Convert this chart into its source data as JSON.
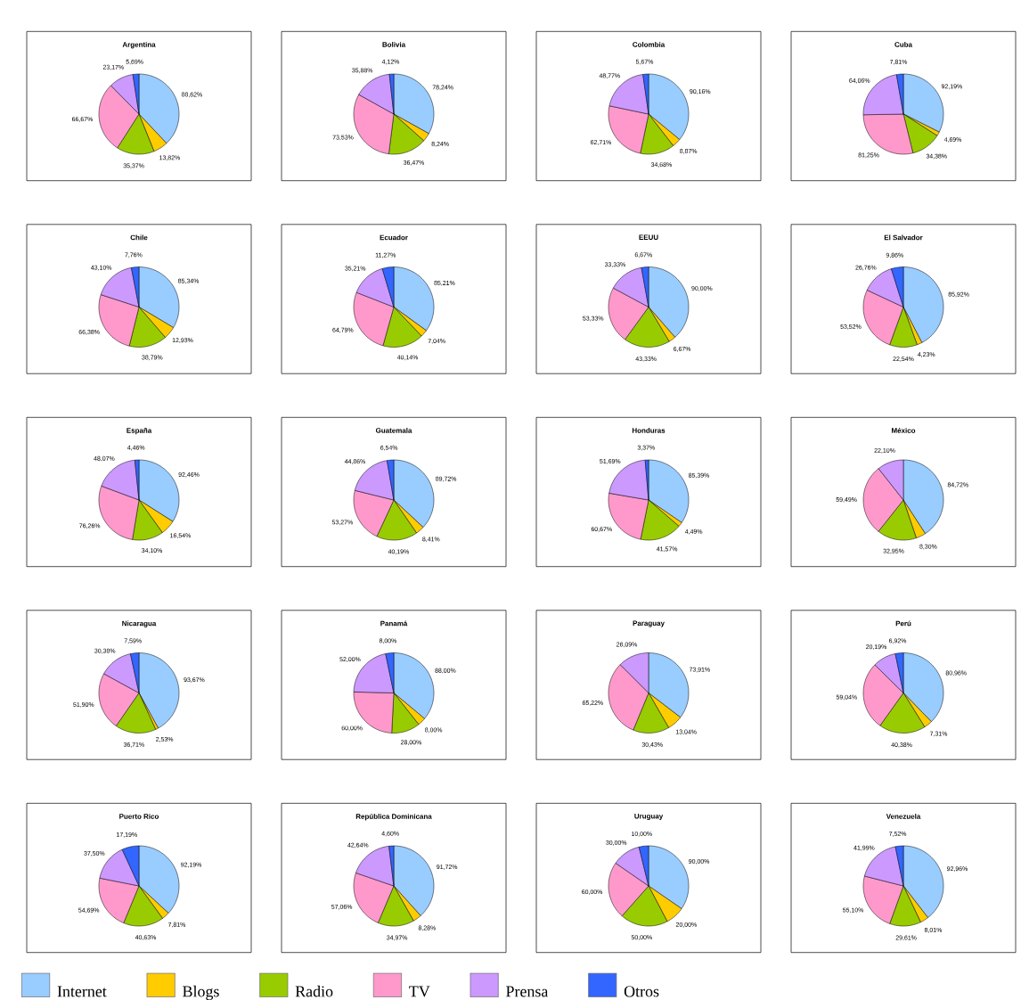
{
  "chart_data": [
    {
      "type": "pie",
      "title": "Argentina",
      "categories": [
        "Internet",
        "Blogs",
        "Radio",
        "TV",
        "Prensa",
        "Otros"
      ],
      "colors": [
        "#99ccff",
        "#ffcc00",
        "#99cc00",
        "#ff99cc",
        "#cc99ff",
        "#3366ff"
      ],
      "legend": "bottom",
      "values": [
        88.62,
        13.82,
        35.37,
        66.67,
        23.17,
        5.69
      ],
      "value_labels": [
        "88,62%",
        "13,82%",
        "35,37%",
        "66,67%",
        "23,17%",
        "5,69%"
      ]
    },
    {
      "type": "pie",
      "title": "Bolivia",
      "categories": [
        null,
        null,
        null,
        null,
        null,
        null
      ],
      "colors": [
        "#99ccff",
        "#ffcc00",
        "#99cc00",
        "#ff99cc",
        "#cc99ff",
        "#3366ff"
      ],
      "values": [
        78.24,
        8.24,
        36.47,
        73.53,
        35.88,
        4.12
      ],
      "value_labels": [
        "78,24%",
        "8,24%",
        "36,47%",
        "73,53%",
        "35,88%",
        "4,12%"
      ]
    },
    {
      "type": "pie",
      "title": "Colombia",
      "categories": [
        null,
        null,
        null,
        null,
        null,
        null
      ],
      "colors": [
        "#99ccff",
        "#ffcc00",
        "#99cc00",
        "#ff99cc",
        "#cc99ff",
        "#3366ff"
      ],
      "values": [
        90.16,
        8.87,
        34.68,
        62.71,
        48.77,
        5.67
      ],
      "value_labels": [
        "90,16%",
        "8,87%",
        "34,68%",
        "62,71%",
        "48,77%",
        "5,67%"
      ]
    },
    {
      "type": "pie",
      "title": "Cuba",
      "categories": [
        null,
        null,
        null,
        null,
        null,
        null
      ],
      "colors": [
        "#99ccff",
        "#ffcc00",
        "#99cc00",
        "#ff99cc",
        "#cc99ff",
        "#3366ff"
      ],
      "values": [
        92.19,
        4.69,
        34.38,
        81.25,
        64.06,
        7.81
      ],
      "value_labels": [
        "92,19%",
        "4,69%",
        "34,38%",
        "81,25%",
        "64,06%",
        "7,81%"
      ]
    },
    {
      "type": "pie",
      "title": "Chile",
      "categories": [
        null,
        null,
        null,
        null,
        null,
        null
      ],
      "colors": [
        "#99ccff",
        "#ffcc00",
        "#99cc00",
        "#ff99cc",
        "#cc99ff",
        "#3366ff"
      ],
      "values": [
        85.34,
        12.93,
        38.79,
        66.38,
        43.1,
        7.76
      ],
      "value_labels": [
        "85,34%",
        "12,93%",
        "38,79%",
        "66,38%",
        "43,10%",
        "7,76%"
      ]
    },
    {
      "type": "pie",
      "title": "Ecuador",
      "categories": [
        null,
        null,
        null,
        null,
        null,
        null
      ],
      "colors": [
        "#99ccff",
        "#ffcc00",
        "#99cc00",
        "#ff99cc",
        "#cc99ff",
        "#3366ff"
      ],
      "values": [
        85.21,
        7.04,
        40.14,
        64.79,
        35.21,
        11.27
      ],
      "value_labels": [
        "85,21%",
        "7,04%",
        "40,14%",
        "64,79%",
        "35,21%",
        "11,27%"
      ]
    },
    {
      "type": "pie",
      "title": "EEUU",
      "categories": [
        null,
        null,
        null,
        null,
        null,
        null
      ],
      "colors": [
        "#99ccff",
        "#ffcc00",
        "#99cc00",
        "#ff99cc",
        "#cc99ff",
        "#3366ff"
      ],
      "values": [
        90.0,
        6.67,
        43.33,
        53.33,
        33.33,
        6.67
      ],
      "value_labels": [
        "90,00%",
        "6,67%",
        "43,33%",
        "53,33%",
        "33,33%",
        "6,67%"
      ]
    },
    {
      "type": "pie",
      "title": "El Salvador",
      "categories": [
        null,
        null,
        null,
        null,
        null,
        null
      ],
      "colors": [
        "#99ccff",
        "#ffcc00",
        "#99cc00",
        "#ff99cc",
        "#cc99ff",
        "#3366ff"
      ],
      "values": [
        85.92,
        4.23,
        22.54,
        53.52,
        26.76,
        9.86
      ],
      "value_labels": [
        "85,92%",
        "4,23%",
        "22,54%",
        "53,52%",
        "26,76%",
        "9,86%"
      ]
    },
    {
      "type": "pie",
      "title": "España",
      "categories": [
        null,
        null,
        null,
        null,
        null,
        null
      ],
      "colors": [
        "#99ccff",
        "#ffcc00",
        "#99cc00",
        "#ff99cc",
        "#cc99ff",
        "#3366ff"
      ],
      "values": [
        92.46,
        16.54,
        34.1,
        76.26,
        48.07,
        4.46
      ],
      "value_labels": [
        "92,46%",
        "16,54%",
        "34,10%",
        "76,26%",
        "48,07%",
        "4,46%"
      ]
    },
    {
      "type": "pie",
      "title": "Guatemala",
      "categories": [
        null,
        null,
        null,
        null,
        null,
        null
      ],
      "colors": [
        "#99ccff",
        "#ffcc00",
        "#99cc00",
        "#ff99cc",
        "#cc99ff",
        "#3366ff"
      ],
      "values": [
        89.72,
        8.41,
        40.19,
        53.27,
        44.86,
        6.54
      ],
      "value_labels": [
        "89,72%",
        "8,41%",
        "40,19%",
        "53,27%",
        "44,86%",
        "6,54%"
      ]
    },
    {
      "type": "pie",
      "title": "Honduras",
      "categories": [
        null,
        null,
        null,
        null,
        null,
        null
      ],
      "colors": [
        "#99ccff",
        "#ffcc00",
        "#99cc00",
        "#ff99cc",
        "#cc99ff",
        "#3366ff"
      ],
      "values": [
        85.39,
        4.49,
        41.57,
        60.67,
        51.69,
        3.37
      ],
      "value_labels": [
        "85,39%",
        "4,49%",
        "41,57%",
        "60,67%",
        "51,69%",
        "3,37%"
      ]
    },
    {
      "type": "pie",
      "title": "México",
      "categories": [
        null,
        null,
        null,
        null,
        null,
        null
      ],
      "colors": [
        "#99ccff",
        "#ffcc00",
        "#99cc00",
        "#ff99cc",
        "#cc99ff",
        "#3366ff"
      ],
      "values": [
        84.72,
        8.3,
        32.95,
        59.49,
        22.1,
        null
      ],
      "value_labels": [
        "84,72%",
        "8,30%",
        "32,95%",
        "59,49%",
        "22,10%",
        null
      ]
    },
    {
      "type": "pie",
      "title": "Nicaragua",
      "categories": [
        null,
        null,
        null,
        null,
        null,
        null
      ],
      "colors": [
        "#99ccff",
        "#ffcc00",
        "#99cc00",
        "#ff99cc",
        "#cc99ff",
        "#3366ff"
      ],
      "values": [
        93.67,
        2.53,
        36.71,
        51.9,
        30.38,
        7.59
      ],
      "value_labels": [
        "93,67%",
        "2,53%",
        "36,71%",
        "51,90%",
        "30,38%",
        "7,59%"
      ]
    },
    {
      "type": "pie",
      "title": "Panamá",
      "categories": [
        null,
        null,
        null,
        null,
        null,
        null
      ],
      "colors": [
        "#99ccff",
        "#ffcc00",
        "#99cc00",
        "#ff99cc",
        "#cc99ff",
        "#3366ff"
      ],
      "values": [
        88.0,
        8.0,
        28.0,
        60.0,
        52.0,
        8.0
      ],
      "value_labels": [
        "88,00%",
        "8,00%",
        "28,00%",
        "60,00%",
        "52,00%",
        "8,00%"
      ]
    },
    {
      "type": "pie",
      "title": "Paraguay",
      "categories": [
        null,
        null,
        null,
        null,
        null,
        null
      ],
      "colors": [
        "#99ccff",
        "#ffcc00",
        "#99cc00",
        "#ff99cc",
        "#cc99ff",
        "#3366ff"
      ],
      "values": [
        73.91,
        13.04,
        30.43,
        65.22,
        26.09,
        null
      ],
      "value_labels": [
        "73,91%",
        "13,04%",
        "30,43%",
        "65,22%",
        "26,09%",
        null
      ]
    },
    {
      "type": "pie",
      "title": "Perú",
      "categories": [
        null,
        null,
        null,
        null,
        null,
        null
      ],
      "colors": [
        "#99ccff",
        "#ffcc00",
        "#99cc00",
        "#ff99cc",
        "#cc99ff",
        "#3366ff"
      ],
      "values": [
        80.96,
        7.31,
        40.38,
        59.04,
        20.19,
        6.92
      ],
      "value_labels": [
        "80,96%",
        "7,31%",
        "40,38%",
        "59,04%",
        "20,19%",
        "6,92%"
      ]
    },
    {
      "type": "pie",
      "title": "Puerto Rico",
      "categories": [
        null,
        null,
        null,
        null,
        null,
        null
      ],
      "colors": [
        "#99ccff",
        "#ffcc00",
        "#99cc00",
        "#ff99cc",
        "#cc99ff",
        "#3366ff"
      ],
      "values": [
        92.19,
        7.81,
        40.63,
        54.69,
        37.5,
        17.19
      ],
      "value_labels": [
        "92,19%",
        "7,81%",
        "40,63%",
        "54,69%",
        "37,50%",
        "17,19%"
      ]
    },
    {
      "type": "pie",
      "title": "República Dominicana",
      "categories": [
        null,
        null,
        null,
        null,
        null,
        null
      ],
      "colors": [
        "#99ccff",
        "#ffcc00",
        "#99cc00",
        "#ff99cc",
        "#cc99ff",
        "#3366ff"
      ],
      "values": [
        91.72,
        8.28,
        34.97,
        57.06,
        42.64,
        4.6
      ],
      "value_labels": [
        "91,72%",
        "8,28%",
        "34,97%",
        "57,06%",
        "42,64%",
        "4,60%"
      ]
    },
    {
      "type": "pie",
      "title": "Uruguay",
      "categories": [
        null,
        null,
        null,
        null,
        null,
        null
      ],
      "colors": [
        "#99ccff",
        "#ffcc00",
        "#99cc00",
        "#ff99cc",
        "#cc99ff",
        "#3366ff"
      ],
      "values": [
        90.0,
        20.0,
        50.0,
        60.0,
        30.0,
        10.0
      ],
      "value_labels": [
        "90,00%",
        "20,00%",
        "50,00%",
        "60,00%",
        "30,00%",
        "10,00%"
      ]
    },
    {
      "type": "pie",
      "title": "Venezuela",
      "categories": [
        null,
        null,
        null,
        null,
        null,
        null
      ],
      "colors": [
        "#99ccff",
        "#ffcc00",
        "#99cc00",
        "#ff99cc",
        "#cc99ff",
        "#3366ff"
      ],
      "values": [
        92.96,
        8.01,
        29.61,
        55.1,
        41.99,
        7.52
      ],
      "value_labels": [
        "92,96%",
        "8,01%",
        "29,61%",
        "55,10%",
        "41,99%",
        "7,52%"
      ]
    }
  ]
}
